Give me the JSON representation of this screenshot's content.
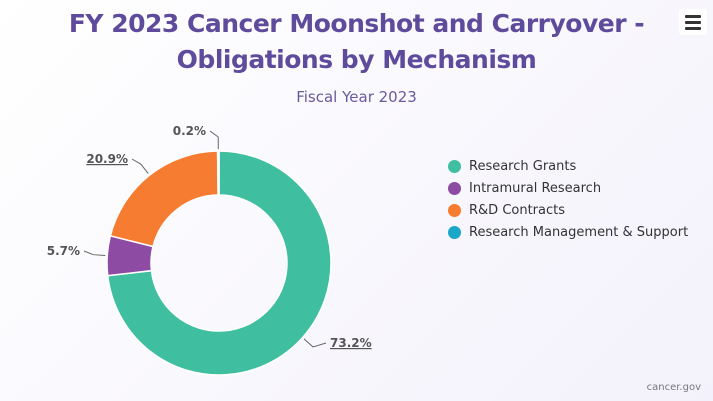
{
  "chart_data": {
    "type": "pie",
    "title": "FY 2023 Cancer Moonshot and Carryover - Obligations by Mechanism",
    "subtitle": "Fiscal Year 2023",
    "categories": [
      "Research Grants",
      "Intramural Research",
      "R&D Contracts",
      "Research Management & Support"
    ],
    "values": [
      73.2,
      5.7,
      20.9,
      0.2
    ],
    "data_labels": [
      "73.2%",
      "5.7%",
      "20.9%",
      "0.2%"
    ],
    "colors": [
      "#3fbf9f",
      "#8e4ba3",
      "#f67c31",
      "#1aa7c9"
    ],
    "legend_placement": "right",
    "donut": true
  },
  "credit": "cancer.gov",
  "menu_icon": "hamburger-menu-icon"
}
